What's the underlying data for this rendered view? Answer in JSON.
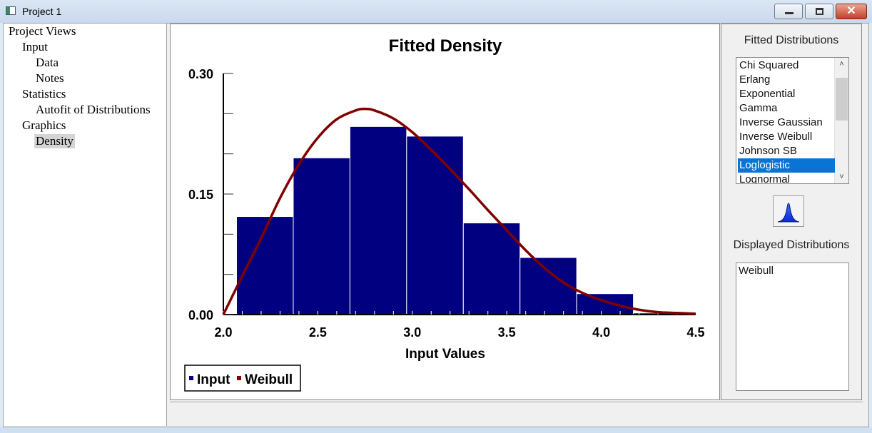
{
  "window": {
    "title": "Project 1",
    "min_label": "–",
    "max_label": "□",
    "close_label": "✕"
  },
  "tree": [
    {
      "label": "Project Views",
      "level": 0
    },
    {
      "label": "Input",
      "level": 1
    },
    {
      "label": "Data",
      "level": 2
    },
    {
      "label": "Notes",
      "level": 2
    },
    {
      "label": "Statistics",
      "level": 1
    },
    {
      "label": "Autofit of Distributions",
      "level": 2
    },
    {
      "label": "Graphics",
      "level": 1
    },
    {
      "label": "Density",
      "level": 2,
      "selected": true
    }
  ],
  "right_panel": {
    "fitted_title": "Fitted Distributions",
    "fitted_items": [
      "Chi Squared",
      "Erlang",
      "Exponential",
      "Gamma",
      "Inverse Gaussian",
      "Inverse Weibull",
      "Johnson SB",
      "Loglogistic",
      "Lognormal"
    ],
    "fitted_selected": "Loglogistic",
    "button_icon": "density-shape-icon",
    "displayed_title": "Displayed Distributions",
    "displayed_items": [
      "Weibull"
    ]
  },
  "chart_data": {
    "type": "bar",
    "title": "Fitted Density",
    "xlabel": "Input Values",
    "ylabel": "",
    "xlim": [
      2.0,
      4.5
    ],
    "ylim": [
      0.0,
      0.3
    ],
    "x_ticks": [
      "2.0",
      "2.5",
      "3.0",
      "3.5",
      "4.0",
      "4.5"
    ],
    "y_ticks": [
      "0.00",
      "0.15",
      "0.30"
    ],
    "bins": [
      {
        "start": 2.07,
        "end": 2.37,
        "value": 0.122
      },
      {
        "start": 2.37,
        "end": 2.67,
        "value": 0.195
      },
      {
        "start": 2.67,
        "end": 2.97,
        "value": 0.234
      },
      {
        "start": 2.97,
        "end": 3.27,
        "value": 0.222
      },
      {
        "start": 3.27,
        "end": 3.57,
        "value": 0.114
      },
      {
        "start": 3.57,
        "end": 3.87,
        "value": 0.071
      },
      {
        "start": 3.87,
        "end": 4.17,
        "value": 0.026
      },
      {
        "start": 4.17,
        "end": 4.47,
        "value": 0.002
      }
    ],
    "series": [
      {
        "name": "Input",
        "kind": "histogram",
        "color": "#000080"
      },
      {
        "name": "Weibull",
        "kind": "line",
        "color": "#800000",
        "x": [
          2.0,
          2.1,
          2.2,
          2.3,
          2.4,
          2.5,
          2.6,
          2.7,
          2.75,
          2.8,
          2.9,
          3.0,
          3.1,
          3.2,
          3.3,
          3.4,
          3.5,
          3.6,
          3.7,
          3.8,
          3.9,
          4.0,
          4.1,
          4.2,
          4.3,
          4.4,
          4.5
        ],
        "y": [
          0.0,
          0.048,
          0.095,
          0.145,
          0.187,
          0.22,
          0.243,
          0.254,
          0.256,
          0.254,
          0.244,
          0.227,
          0.205,
          0.181,
          0.156,
          0.13,
          0.105,
          0.08,
          0.058,
          0.04,
          0.027,
          0.018,
          0.011,
          0.006,
          0.003,
          0.002,
          0.001
        ]
      }
    ],
    "legend": {
      "position": "bottom-left",
      "entries": [
        "Input",
        "Weibull"
      ]
    },
    "grid": false
  }
}
